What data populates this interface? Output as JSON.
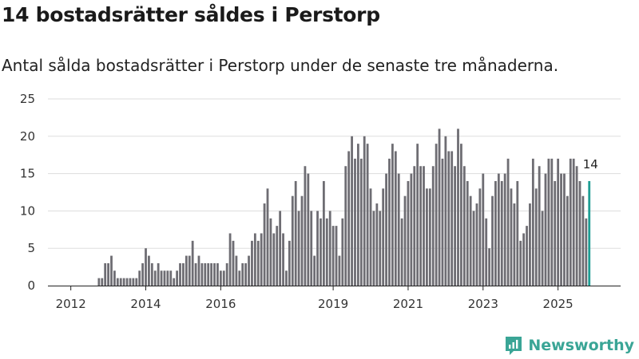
{
  "header": {
    "title": "14 bostadsrätter såldes i Perstorp",
    "subtitle": "Antal sålda bostadsrätter i Perstorp under de senaste tre månaderna."
  },
  "brand": {
    "name": "Newsworthy"
  },
  "colors": {
    "bar": "#6e6d73",
    "highlight": "#1f9e94",
    "grid": "#dddddd",
    "brand": "#3aa596"
  },
  "chart_data": {
    "type": "bar",
    "title": "14 bostadsrätter såldes i Perstorp",
    "subtitle": "Antal sålda bostadsrätter i Perstorp under de senaste tre månaderna.",
    "xlabel": "",
    "ylabel": "",
    "ylim": [
      0,
      25
    ],
    "yticks": [
      0,
      5,
      10,
      15,
      20,
      25
    ],
    "grid": true,
    "start": "2011-07",
    "interval": "month",
    "xtick_labels": [
      {
        "label": "2012",
        "index": 7
      },
      {
        "label": "2014",
        "index": 31
      },
      {
        "label": "2016",
        "index": 55
      },
      {
        "label": "2019",
        "index": 91
      },
      {
        "label": "2021",
        "index": 115
      },
      {
        "label": "2023",
        "index": 139
      },
      {
        "label": "2025",
        "index": 163
      }
    ],
    "values": [
      0,
      0,
      0,
      0,
      0,
      0,
      0,
      0,
      0,
      0,
      0,
      0,
      0,
      0,
      0,
      0,
      1,
      1,
      3,
      3,
      4,
      2,
      1,
      1,
      1,
      1,
      1,
      1,
      1,
      2,
      3,
      5,
      4,
      3,
      2,
      3,
      2,
      2,
      2,
      2,
      1,
      2,
      3,
      3,
      4,
      4,
      6,
      3,
      4,
      3,
      3,
      3,
      3,
      3,
      3,
      2,
      2,
      3,
      7,
      6,
      4,
      2,
      3,
      3,
      4,
      6,
      7,
      6,
      7,
      11,
      13,
      9,
      7,
      8,
      10,
      7,
      2,
      6,
      12,
      14,
      10,
      12,
      16,
      15,
      10,
      4,
      10,
      9,
      14,
      9,
      10,
      8,
      8,
      4,
      9,
      16,
      18,
      20,
      17,
      19,
      17,
      20,
      19,
      13,
      10,
      11,
      10,
      13,
      15,
      17,
      19,
      18,
      15,
      9,
      12,
      14,
      15,
      16,
      19,
      16,
      16,
      13,
      13,
      16,
      19,
      21,
      17,
      20,
      18,
      18,
      16,
      21,
      19,
      16,
      14,
      12,
      10,
      11,
      13,
      15,
      9,
      5,
      12,
      14,
      15,
      14,
      15,
      17,
      13,
      11,
      14,
      6,
      7,
      8,
      11,
      17,
      13,
      16,
      10,
      15,
      17,
      17,
      14,
      17,
      15,
      15,
      12,
      17,
      17,
      16,
      14,
      12,
      9,
      14
    ],
    "highlight": {
      "index": 173,
      "value": 14,
      "label": "14"
    }
  }
}
